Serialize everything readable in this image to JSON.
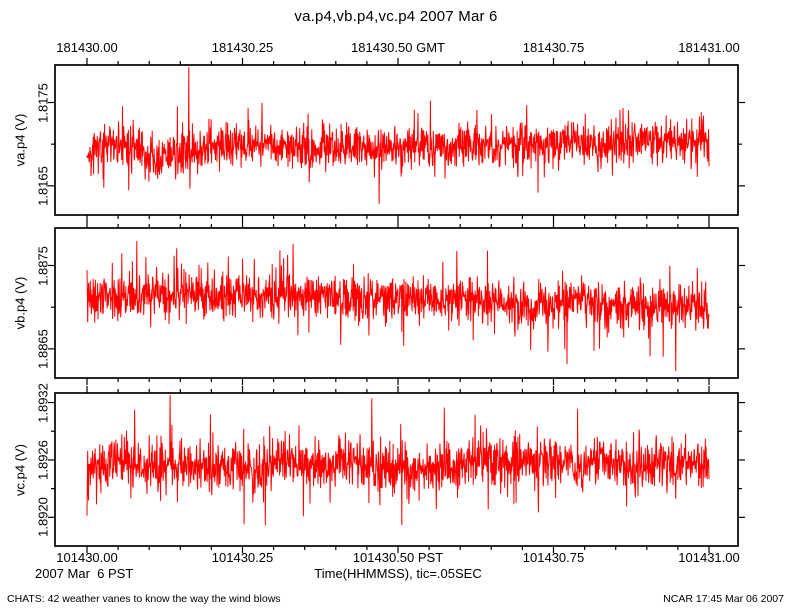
{
  "page": {
    "footer_left": "CHATS: 42 weather vanes to know the way the wind blows",
    "footer_right": "NCAR 17:45 Mar 06 2007"
  },
  "chart_data": {
    "type": "line",
    "title": "va.p4,vb.p4,vc.p4 2007 Mar 6",
    "trace_color": "#ff0000",
    "frame_color": "#000000",
    "grid": false,
    "legend": "none",
    "x_axis": {
      "label": "Time(HHMMSS), tic=.05SEC",
      "date_label": "2007 Mar  6 PST",
      "minor_tick_seconds": 0.05,
      "major_positions": [
        0,
        0.25,
        0.5,
        0.75,
        1
      ],
      "top_unit": "GMT",
      "bottom_unit": "PST",
      "top_tick_labels": [
        "181430.00",
        "181430.25",
        "181430.50 GMT",
        "181430.75",
        "181431.00"
      ],
      "bottom_tick_labels": [
        "101430.00",
        "101430.25",
        "101430.50 PST",
        "101430.75",
        "101431.00"
      ],
      "data_range_seconds": [
        0,
        1
      ],
      "frame_range_seconds": [
        -0.05,
        1.05
      ]
    },
    "panels": [
      {
        "name": "va.p4",
        "ylabel": "va.p4 (V)",
        "ylim": [
          1.81615,
          1.81795
        ],
        "yticks": [
          {
            "value": 1.8165,
            "label": "1.8165"
          },
          {
            "value": 1.817,
            "label": ""
          },
          {
            "value": 1.8175,
            "label": "1.8175"
          }
        ],
        "signal": {
          "mean": 1.81695,
          "std": 0.00013,
          "n_points": 1700,
          "seed": 11
        }
      },
      {
        "name": "vb.p4",
        "ylabel": "vb.p4 (V)",
        "ylim": [
          1.88615,
          1.88795
        ],
        "yticks": [
          {
            "value": 1.8865,
            "label": "1.8865"
          },
          {
            "value": 1.887,
            "label": ""
          },
          {
            "value": 1.8875,
            "label": "1.8875"
          }
        ],
        "signal": {
          "mean": 1.8871,
          "std": 0.00013,
          "n_points": 1700,
          "seed": 27
        }
      },
      {
        "name": "vc.p4",
        "ylabel": "vc.p4 (V)",
        "ylim": [
          1.8917,
          1.8933
        ],
        "yticks": [
          {
            "value": 1.892,
            "label": "1.8920"
          },
          {
            "value": 1.8923,
            "label": ""
          },
          {
            "value": 1.8926,
            "label": "1.8926"
          },
          {
            "value": 1.8929,
            "label": ""
          },
          {
            "value": 1.8932,
            "label": "1.8932"
          }
        ],
        "signal": {
          "mean": 1.89248,
          "std": 0.00013,
          "n_points": 1700,
          "seed": 43
        }
      }
    ]
  }
}
